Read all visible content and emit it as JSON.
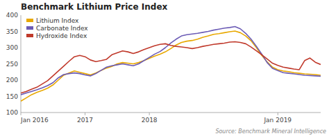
{
  "chart_data": {
    "type": "line",
    "title": "Benchmark Lithium Price Index",
    "source": "Source: Benchmark Mineral Intelligence",
    "categories": [
      "Jan 2016",
      null,
      null,
      null,
      null,
      null,
      null,
      null,
      null,
      null,
      null,
      null,
      "2017",
      null,
      null,
      null,
      null,
      null,
      null,
      null,
      null,
      null,
      null,
      null,
      "2018",
      null,
      null,
      null,
      null,
      null,
      null,
      null,
      null,
      null,
      null,
      null,
      null,
      null,
      null,
      null,
      null,
      null,
      null,
      null,
      null,
      null,
      null,
      null,
      "Jan 2019",
      null,
      null,
      null,
      null,
      null,
      null,
      null,
      null
    ],
    "series": [
      {
        "name": "Lithium Index",
        "color": "#e8a800",
        "values": [
          135,
          145,
          155,
          162,
          168,
          175,
          185,
          200,
          215,
          222,
          228,
          224,
          220,
          216,
          222,
          230,
          237,
          242,
          250,
          254,
          252,
          250,
          254,
          260,
          267,
          274,
          280,
          287,
          297,
          308,
          316,
          320,
          322,
          326,
          332,
          336,
          341,
          343,
          346,
          349,
          351,
          346,
          336,
          321,
          300,
          276,
          256,
          240,
          232,
          228,
          226,
          223,
          221,
          219,
          218,
          217,
          215
        ]
      },
      {
        "name": "Carbonate Index",
        "color": "#6b5bb5",
        "values": [
          155,
          160,
          165,
          170,
          176,
          183,
          192,
          207,
          217,
          220,
          222,
          220,
          216,
          213,
          220,
          230,
          240,
          244,
          247,
          250,
          247,
          244,
          250,
          260,
          270,
          280,
          288,
          300,
          314,
          326,
          336,
          340,
          342,
          344,
          347,
          350,
          354,
          357,
          360,
          362,
          365,
          358,
          344,
          326,
          304,
          280,
          254,
          236,
          229,
          223,
          221,
          219,
          217,
          215,
          214,
          213,
          212
        ]
      },
      {
        "name": "Hydroxide Index",
        "color": "#c0392b",
        "values": [
          160,
          165,
          172,
          178,
          188,
          198,
          213,
          228,
          243,
          258,
          272,
          276,
          272,
          262,
          257,
          260,
          264,
          278,
          284,
          290,
          287,
          282,
          287,
          294,
          300,
          306,
          310,
          312,
          307,
          304,
          302,
          300,
          297,
          300,
          304,
          307,
          310,
          312,
          314,
          317,
          318,
          316,
          312,
          302,
          290,
          278,
          265,
          252,
          245,
          240,
          237,
          234,
          232,
          260,
          268,
          255,
          248
        ]
      }
    ],
    "ylim": [
      100,
      400
    ],
    "yticks": [
      100,
      150,
      200,
      250,
      300,
      350,
      400
    ],
    "grid": false,
    "legend": "upper left"
  }
}
